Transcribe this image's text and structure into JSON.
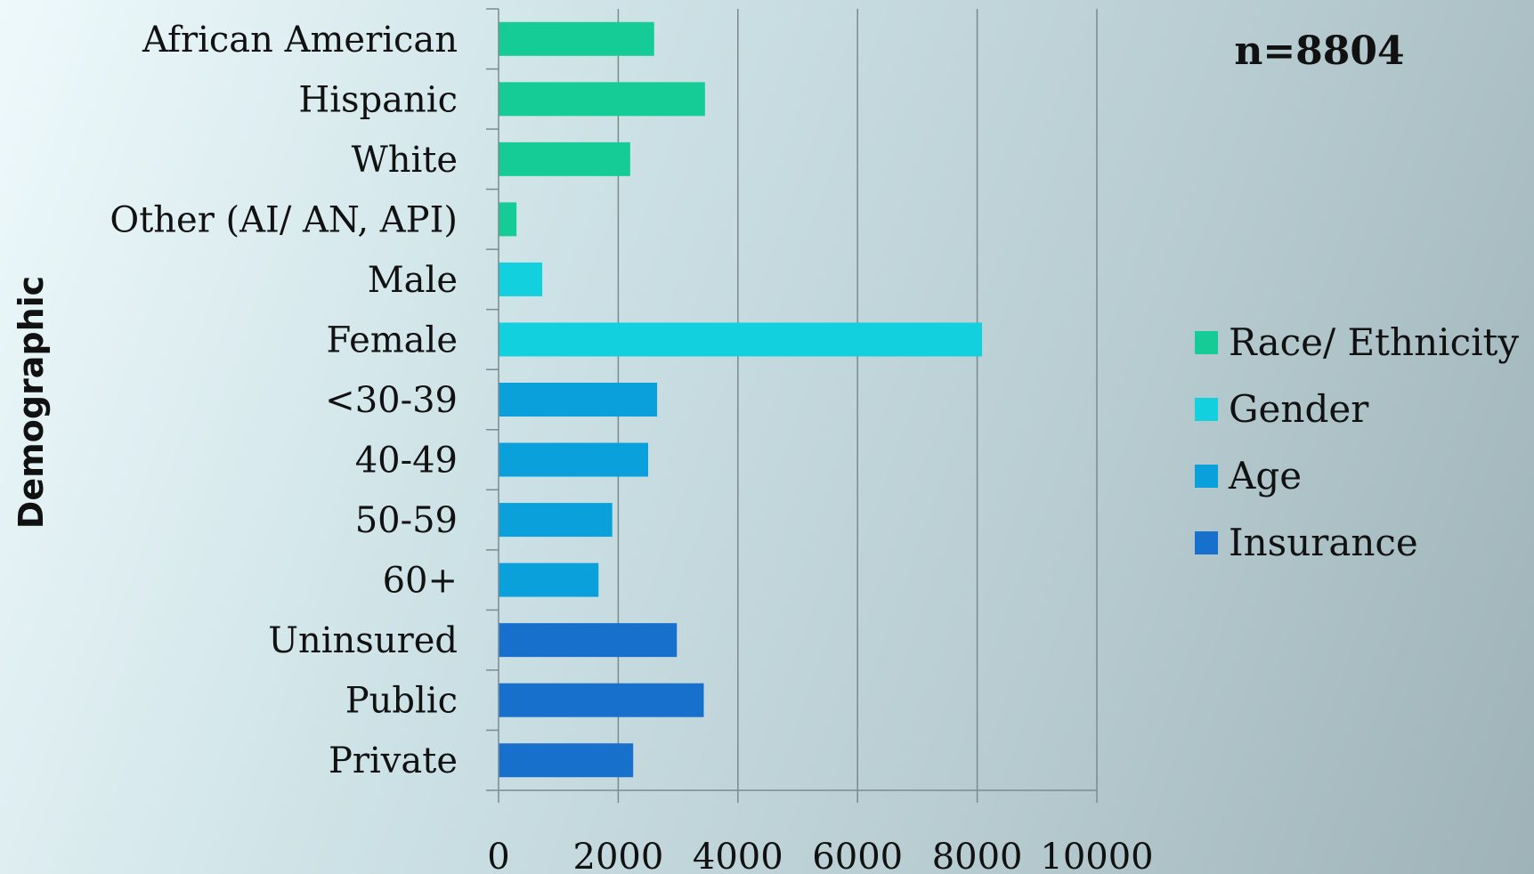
{
  "chart_data": {
    "type": "bar",
    "orientation": "horizontal",
    "title": "",
    "annotation": "n=8804",
    "xlabel": "",
    "ylabel": "Demographic",
    "xlim": [
      0,
      10000
    ],
    "xticks": [
      "0",
      "2000",
      "4000",
      "6000",
      "8000",
      "10000"
    ],
    "grid": "vertical",
    "legend_position": "right",
    "categories": [
      "African American",
      "Hispanic",
      "White",
      "Other (AI/ AN, API)",
      "Male",
      "Female",
      "<30-39",
      "40-49",
      "50-59",
      "60+",
      "Uninsured",
      "Public",
      "Private"
    ],
    "series": [
      {
        "name": "Race/ Ethnicity",
        "color": "#16cc96",
        "values": [
          2600,
          3450,
          2200,
          300,
          null,
          null,
          null,
          null,
          null,
          null,
          null,
          null,
          null
        ]
      },
      {
        "name": "Gender",
        "color": "#12d0de",
        "values": [
          null,
          null,
          null,
          null,
          730,
          8080,
          null,
          null,
          null,
          null,
          null,
          null,
          null
        ]
      },
      {
        "name": "Age",
        "color": "#0aa0dc",
        "values": [
          null,
          null,
          null,
          null,
          null,
          null,
          2650,
          2500,
          1900,
          1670,
          null,
          null,
          null
        ]
      },
      {
        "name": "Insurance",
        "color": "#1670cc",
        "values": [
          null,
          null,
          null,
          null,
          null,
          null,
          null,
          null,
          null,
          null,
          2980,
          3430,
          2250
        ]
      }
    ]
  }
}
